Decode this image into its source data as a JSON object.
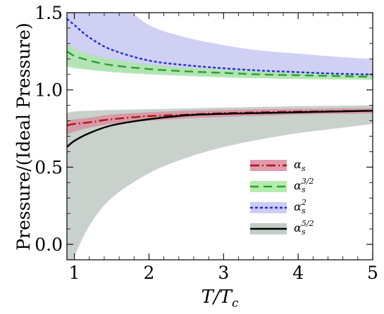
{
  "chart_data": {
    "type": "line",
    "xlabel": "T/T_c",
    "xlabel_parts": {
      "main": "T/T",
      "sub": "c"
    },
    "ylabel": "Pressure/(Ideal Pressure)",
    "xlim": [
      0.9,
      5.0
    ],
    "ylim": [
      -0.1,
      1.5
    ],
    "x_ticks": [
      1,
      2,
      3,
      4,
      5
    ],
    "x_tick_labels": [
      "1",
      "2",
      "3",
      "4",
      "5"
    ],
    "y_ticks": [
      0.0,
      0.5,
      1.0,
      1.5
    ],
    "y_tick_labels": [
      "0.0",
      "0.5",
      "1.0",
      "1.5"
    ],
    "grid": false,
    "legend_position": "lower-right",
    "series": [
      {
        "name": "α_s",
        "legend_main": "α",
        "legend_sub": "s",
        "legend_sup": "",
        "color": "#b21414",
        "band_color": "#d98b9e",
        "dash": "13,4,2,4",
        "x": [
          0.9,
          1.0,
          1.2,
          1.5,
          2.0,
          2.5,
          3.0,
          3.5,
          4.0,
          4.5,
          5.0
        ],
        "y": [
          0.77,
          0.78,
          0.79,
          0.81,
          0.83,
          0.84,
          0.85,
          0.855,
          0.86,
          0.862,
          0.865
        ],
        "upper": [
          0.8,
          0.81,
          0.82,
          0.84,
          0.855,
          0.865,
          0.87,
          0.875,
          0.877,
          0.88,
          0.882
        ],
        "lower": [
          0.71,
          0.73,
          0.755,
          0.78,
          0.8,
          0.815,
          0.825,
          0.833,
          0.84,
          0.844,
          0.848
        ]
      },
      {
        "name": "α_s^{3/2}",
        "legend_main": "α",
        "legend_sub": "s",
        "legend_sup": "3/2",
        "color": "#2ca02c",
        "band_color": "#a8e8a0",
        "dash": "12,7",
        "x": [
          0.9,
          1.0,
          1.2,
          1.5,
          2.0,
          2.5,
          3.0,
          3.5,
          4.0,
          4.5,
          5.0
        ],
        "y": [
          1.25,
          1.22,
          1.19,
          1.16,
          1.135,
          1.12,
          1.11,
          1.1,
          1.095,
          1.09,
          1.085
        ],
        "upper": [
          1.3,
          1.27,
          1.23,
          1.2,
          1.165,
          1.145,
          1.13,
          1.12,
          1.11,
          1.105,
          1.1
        ],
        "lower": [
          1.15,
          1.14,
          1.13,
          1.115,
          1.1,
          1.09,
          1.08,
          1.075,
          1.07,
          1.067,
          1.065
        ]
      },
      {
        "name": "α_s^2",
        "legend_main": "α",
        "legend_sub": "s",
        "legend_sup": "2",
        "color": "#1f2fd6",
        "band_color": "#c3c3f2",
        "dash": "4,3",
        "x": [
          0.9,
          1.0,
          1.2,
          1.5,
          2.0,
          2.5,
          3.0,
          3.5,
          4.0,
          4.5,
          5.0
        ],
        "y": [
          1.46,
          1.42,
          1.34,
          1.26,
          1.19,
          1.16,
          1.14,
          1.125,
          1.115,
          1.105,
          1.1
        ],
        "upper": [
          1.6,
          1.6,
          1.6,
          1.6,
          1.42,
          1.34,
          1.29,
          1.255,
          1.235,
          1.215,
          1.2
        ],
        "lower": [
          1.16,
          1.15,
          1.135,
          1.12,
          1.105,
          1.095,
          1.087,
          1.08,
          1.077,
          1.074,
          1.07
        ]
      },
      {
        "name": "α_s^{5/2}",
        "legend_main": "α",
        "legend_sub": "s",
        "legend_sup": "5/2",
        "color": "#000000",
        "band_color": "#b9c4bd",
        "dash": "",
        "x": [
          0.9,
          1.0,
          1.2,
          1.5,
          2.0,
          2.5,
          3.0,
          3.5,
          4.0,
          4.5,
          5.0
        ],
        "y": [
          0.63,
          0.67,
          0.72,
          0.77,
          0.81,
          0.835,
          0.845,
          0.85,
          0.855,
          0.86,
          0.865
        ],
        "upper": [
          0.85,
          0.86,
          0.865,
          0.87,
          0.875,
          0.88,
          0.885,
          0.89,
          0.895,
          0.897,
          0.9
        ],
        "lower": [
          -0.2,
          -0.08,
          0.12,
          0.3,
          0.46,
          0.56,
          0.63,
          0.68,
          0.72,
          0.75,
          0.78
        ]
      }
    ]
  }
}
